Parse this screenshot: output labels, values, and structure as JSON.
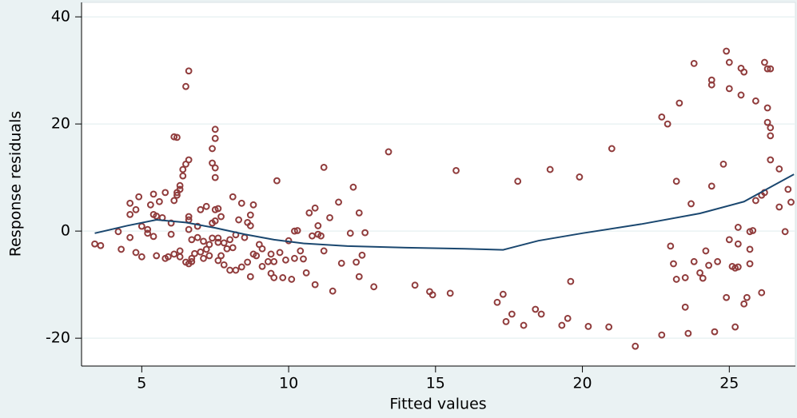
{
  "chart_data": {
    "type": "scatter",
    "xlabel": "Fitted values",
    "ylabel": "Response residuals",
    "xlim": [
      2.95,
      27.25
    ],
    "ylim": [
      -25.2,
      42.7
    ],
    "xticks": [
      5,
      10,
      15,
      20,
      25
    ],
    "yticks": [
      -20,
      0,
      20,
      40
    ],
    "grid": true,
    "points": {
      "color": "#903c3c",
      "x": [
        3.4,
        3.6,
        4.2,
        4.3,
        4.6,
        4.6,
        4.6,
        4.8,
        4.9,
        4.8,
        5.0,
        5.0,
        5.2,
        5.2,
        5.3,
        5.4,
        5.4,
        5.5,
        5.4,
        5.5,
        5.6,
        5.7,
        5.8,
        5.8,
        5.9,
        6.0,
        6.0,
        6.1,
        6.2,
        6.1,
        6.1,
        6.2,
        6.2,
        6.3,
        6.3,
        6.3,
        6.3,
        6.4,
        6.4,
        6.5,
        6.5,
        6.5,
        6.6,
        6.6,
        6.6,
        6.6,
        6.6,
        6.6,
        6.7,
        6.7,
        6.7,
        6.8,
        6.9,
        6.9,
        7.0,
        7.0,
        7.1,
        7.1,
        7.2,
        7.2,
        7.3,
        7.3,
        7.4,
        7.4,
        7.4,
        7.4,
        7.5,
        7.5,
        7.5,
        7.5,
        7.5,
        7.5,
        7.6,
        7.6,
        7.6,
        7.6,
        7.7,
        7.7,
        7.8,
        7.8,
        7.9,
        8.0,
        8.0,
        8.1,
        8.1,
        8.2,
        8.2,
        8.3,
        8.4,
        8.4,
        8.5,
        8.6,
        8.6,
        8.7,
        8.7,
        8.8,
        8.8,
        8.7,
        8.9,
        9.0,
        9.1,
        9.1,
        9.3,
        9.4,
        9.4,
        9.5,
        9.6,
        9.5,
        9.7,
        9.8,
        9.9,
        10.0,
        10.1,
        10.2,
        10.2,
        10.3,
        10.4,
        10.5,
        10.6,
        10.7,
        10.8,
        10.9,
        10.9,
        11.0,
        11.0,
        11.1,
        11.2,
        11.2,
        11.4,
        11.5,
        11.7,
        11.8,
        12.1,
        12.2,
        12.3,
        12.4,
        12.4,
        12.5,
        12.6,
        12.9,
        13.4,
        14.3,
        14.8,
        14.9,
        15.5,
        15.7,
        17.1,
        17.3,
        17.4,
        17.6,
        17.8,
        18.0,
        18.4,
        18.6,
        18.9,
        19.3,
        19.5,
        19.6,
        19.9,
        20.2,
        20.9,
        21.0,
        21.8,
        22.7,
        22.7,
        22.9,
        23.0,
        23.1,
        23.2,
        23.2,
        23.3,
        23.5,
        23.5,
        23.6,
        23.7,
        23.8,
        23.8,
        24.0,
        24.1,
        24.2,
        24.3,
        24.4,
        24.4,
        24.4,
        24.5,
        24.6,
        24.8,
        24.9,
        24.9,
        25.0,
        25.0,
        25.0,
        25.1,
        25.2,
        25.2,
        25.3,
        25.3,
        25.3,
        25.4,
        25.4,
        25.5,
        25.5,
        25.6,
        25.7,
        25.7,
        25.7,
        25.8,
        25.9,
        25.9,
        26.1,
        26.1,
        26.2,
        26.2,
        26.3,
        26.3,
        26.3,
        26.4,
        26.4,
        26.4,
        26.4,
        26.7,
        26.7,
        26.9,
        27.0,
        27.1
      ],
      "y": [
        -2.4,
        -2.7,
        -0.1,
        -3.4,
        5.2,
        3.1,
        -1.2,
        4.0,
        6.4,
        -4.0,
        0.9,
        -4.8,
        0.3,
        -0.4,
        4.9,
        6.9,
        3.1,
        2.8,
        -1.0,
        -4.6,
        5.5,
        2.5,
        7.2,
        -5.1,
        -4.8,
        1.5,
        -0.6,
        17.6,
        17.5,
        -4.3,
        5.7,
        6.7,
        7.2,
        8.5,
        7.8,
        -4.8,
        -3.7,
        10.3,
        11.5,
        27.0,
        -5.8,
        12.5,
        13.3,
        0.3,
        29.9,
        -6.1,
        2.7,
        2.1,
        -5.1,
        -1.6,
        -5.7,
        -4.2,
        0.9,
        -1.2,
        -3.9,
        4.0,
        -1.9,
        -5.1,
        4.6,
        -3.4,
        -4.6,
        -2.5,
        -1.3,
        15.4,
        12.7,
        1.5,
        1.9,
        19.0,
        17.3,
        11.8,
        10.0,
        4.0,
        -1.3,
        -5.5,
        -2.1,
        4.2,
        2.7,
        -4.6,
        -2.2,
        -6.3,
        -3.3,
        -7.3,
        -1.6,
        6.4,
        -3.1,
        -7.3,
        -0.7,
        2.1,
        -6.7,
        5.2,
        -1.2,
        -5.8,
        1.6,
        3.0,
        1.0,
        4.9,
        -4.3,
        -8.5,
        -4.6,
        -2.5,
        -6.6,
        -3.3,
        -5.7,
        -7.9,
        -4.3,
        -8.7,
        9.4,
        -5.7,
        -4.0,
        -8.7,
        -5.4,
        -1.8,
        -9.0,
        -5.1,
        0,
        0.1,
        -3.7,
        -5.2,
        -7.8,
        3.4,
        -0.9,
        -10.0,
        4.3,
        1.0,
        -0.6,
        -0.9,
        11.9,
        -3.7,
        2.5,
        -11.2,
        5.4,
        -6.0,
        -0.4,
        8.2,
        -5.8,
        3.4,
        -8.5,
        -4.5,
        -0.3,
        -10.4,
        14.8,
        -10.1,
        -11.3,
        -11.9,
        -11.6,
        11.3,
        -13.3,
        -11.8,
        -16.9,
        -15.5,
        9.3,
        -17.6,
        -14.6,
        -15.5,
        11.5,
        -17.6,
        -16.3,
        -9.4,
        10.1,
        -17.8,
        -17.9,
        15.4,
        -21.5,
        -19.4,
        21.3,
        20.0,
        -2.8,
        -6.1,
        9.3,
        -9.0,
        23.9,
        -8.7,
        -14.2,
        -19.1,
        5.1,
        31.3,
        -5.7,
        -7.8,
        -8.8,
        -3.7,
        -6.4,
        8.4,
        28.2,
        27.3,
        -18.8,
        -5.7,
        12.5,
        33.6,
        -12.4,
        31.5,
        26.6,
        -1.6,
        -6.6,
        -6.9,
        -17.9,
        0.7,
        -6.7,
        -2.4,
        25.4,
        30.4,
        -13.6,
        29.7,
        -12.4,
        -0.1,
        -3.4,
        -6.1,
        0.1,
        24.3,
        5.7,
        6.7,
        -11.5,
        7.2,
        31.5,
        23.0,
        20.3,
        30.3,
        19.3,
        17.8,
        13.3,
        30.3,
        11.6,
        4.5,
        -0.1,
        7.8,
        5.4
      ]
    },
    "fit": {
      "color": "#1a476f",
      "x": [
        3.4,
        4.5,
        5.5,
        6.5,
        7.5,
        8.5,
        9.5,
        10.5,
        12,
        14,
        16,
        17.3,
        18.5,
        20,
        22,
        24,
        25.5,
        26.5,
        27.2
      ],
      "y": [
        -0.4,
        1.0,
        2.1,
        1.6,
        0.6,
        -0.6,
        -1.6,
        -2.3,
        -2.8,
        -3.1,
        -3.3,
        -3.5,
        -1.8,
        -0.4,
        1.3,
        3.3,
        5.5,
        8.5,
        10.6
      ]
    }
  }
}
